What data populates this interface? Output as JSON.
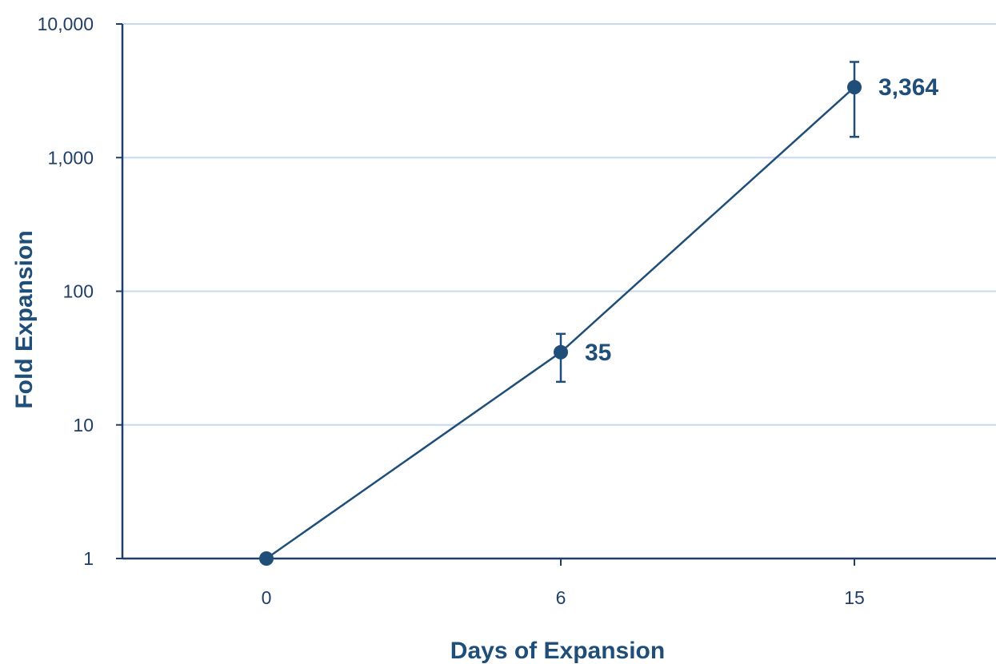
{
  "chart_data": {
    "type": "line",
    "xlabel": "Days of Expansion",
    "ylabel": "Fold Expansion",
    "y_scale": "log",
    "ylim": [
      1,
      10000
    ],
    "x_ticks": [
      0,
      6,
      15
    ],
    "y_ticks": [
      1,
      10,
      100,
      1000,
      10000
    ],
    "y_tick_labels": [
      "1",
      "10",
      "100",
      "1,000",
      "10,000"
    ],
    "grid": "horizontal",
    "colors": {
      "series": "#1f4e79",
      "grid": "#c6d9ef",
      "axis": "#1f3f66"
    },
    "series": [
      {
        "points": [
          {
            "x": 0,
            "y": 1,
            "label": "",
            "err_low": null,
            "err_high": null
          },
          {
            "x": 6,
            "y": 35,
            "label": "35",
            "err_low": 21,
            "err_high": 48
          },
          {
            "x": 15,
            "y": 3364,
            "label": "3,364",
            "err_low": 1430,
            "err_high": 5200
          }
        ]
      }
    ]
  }
}
